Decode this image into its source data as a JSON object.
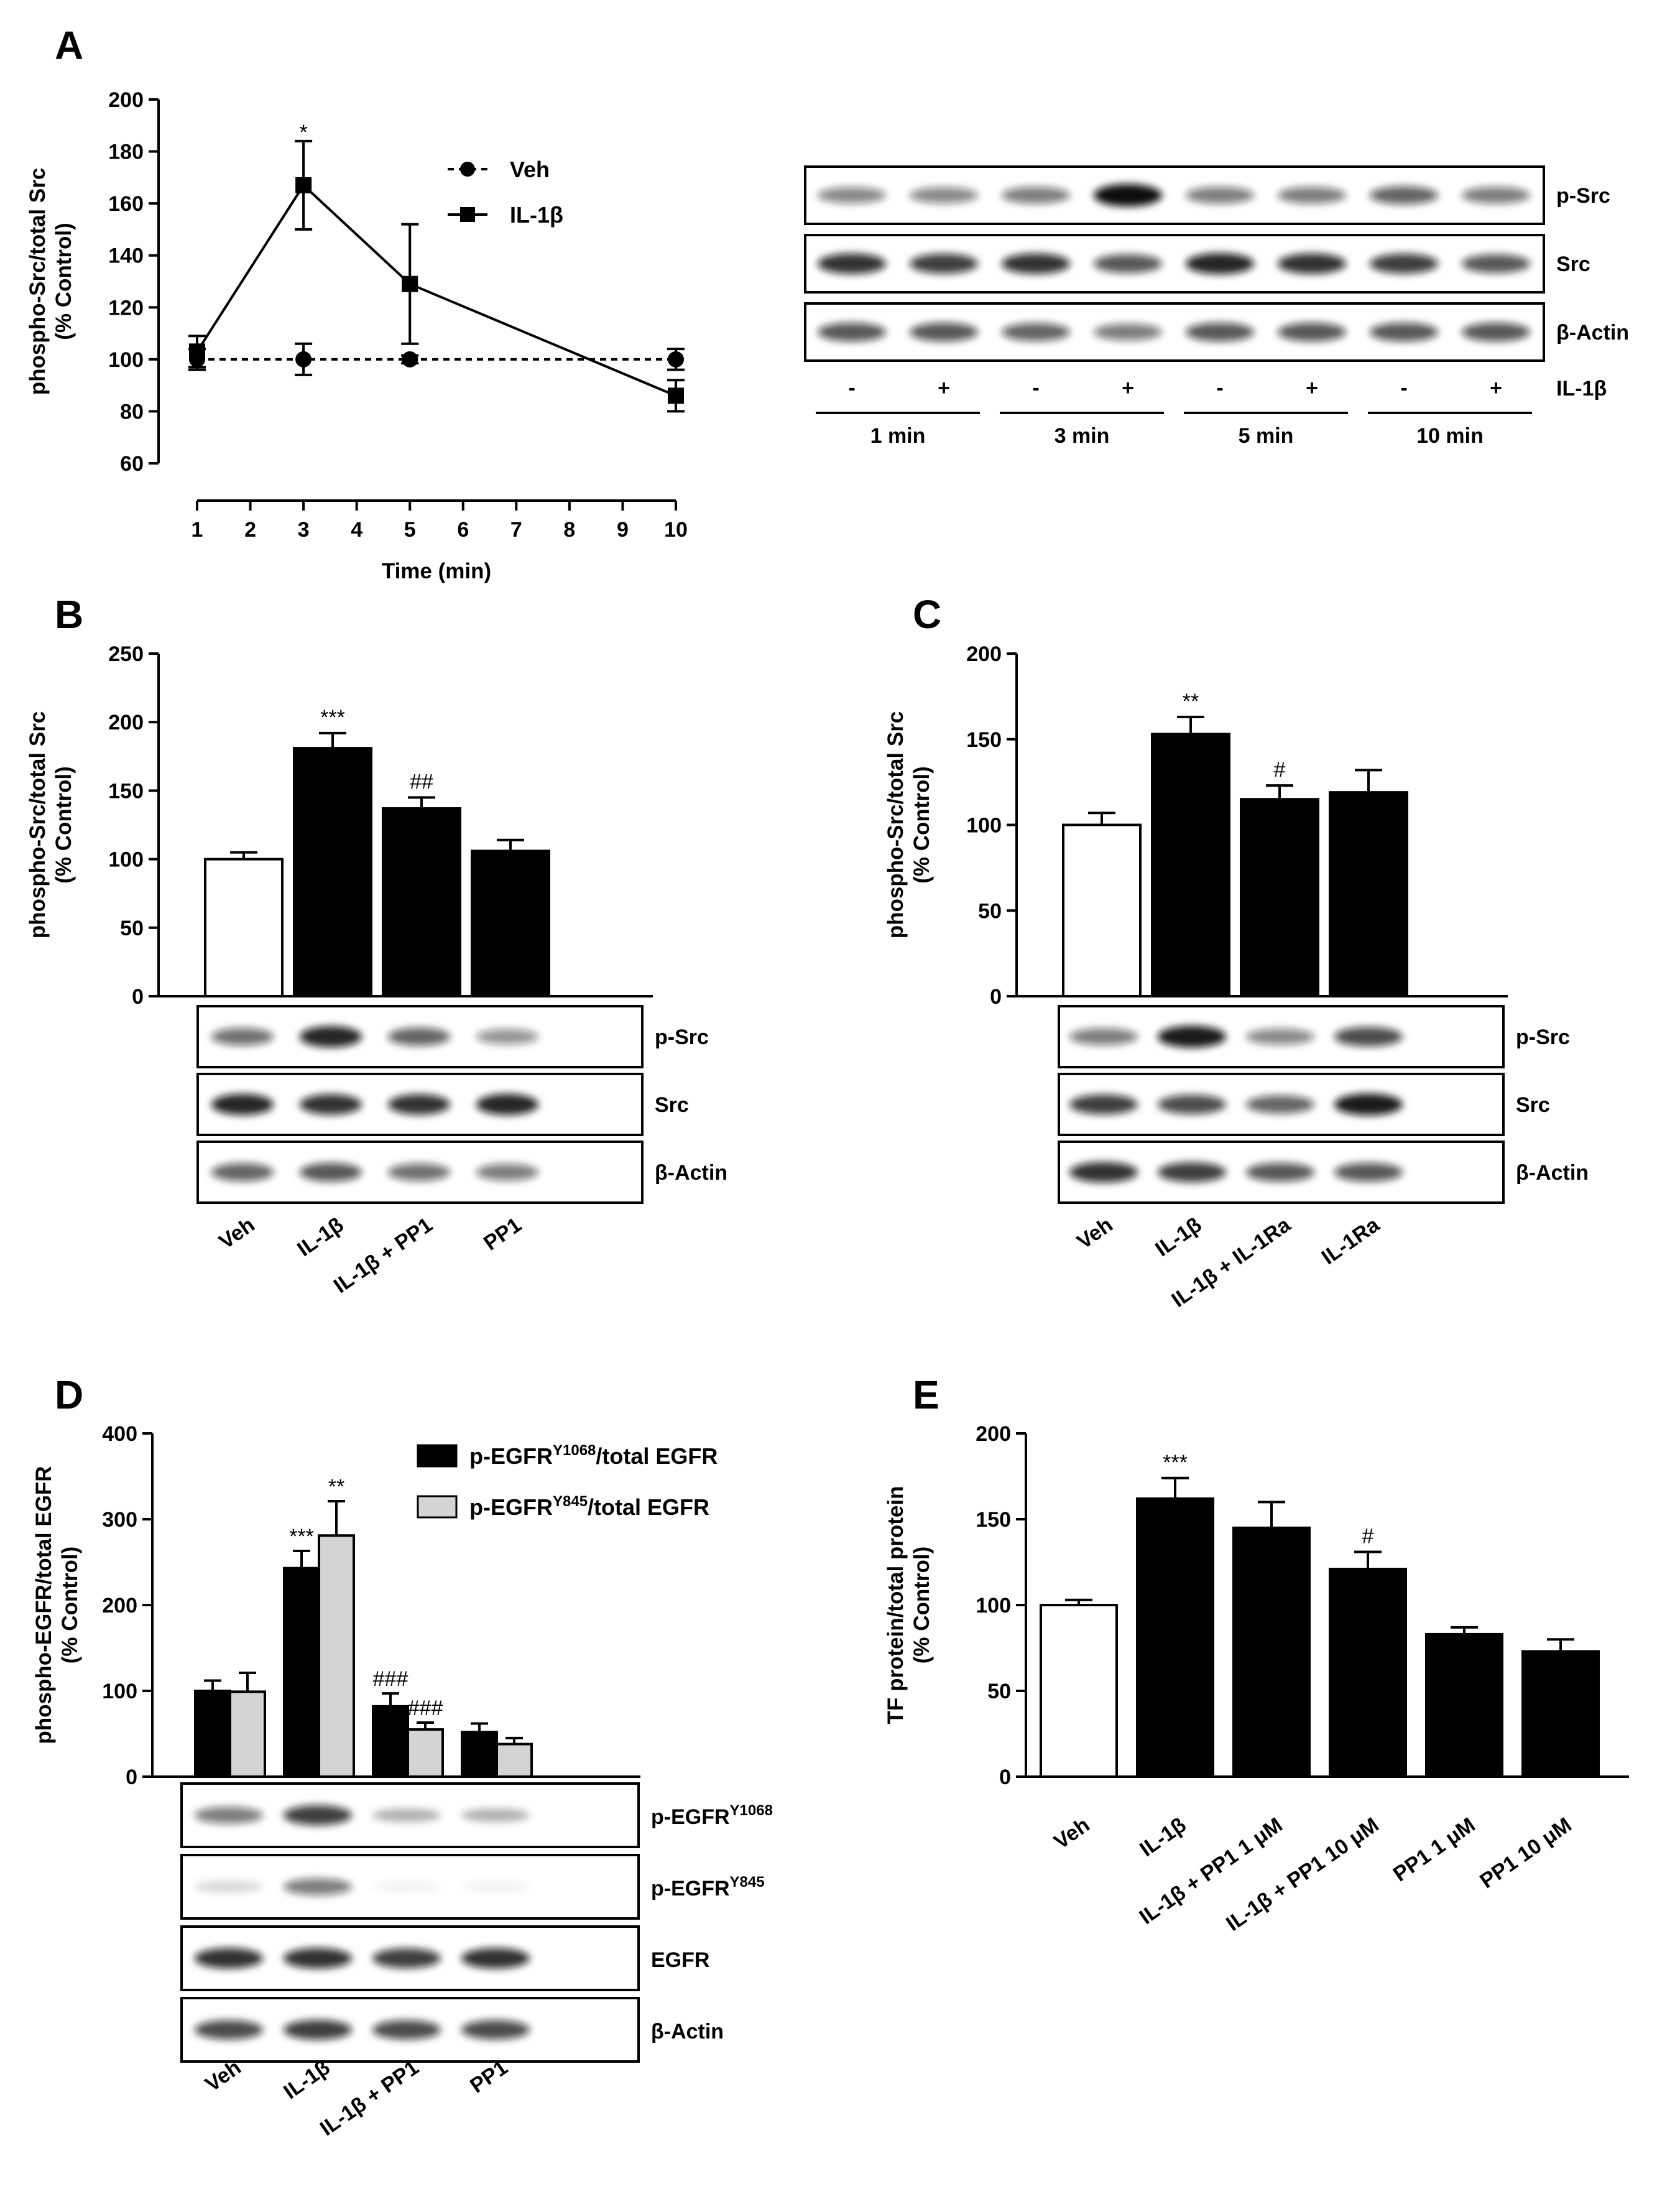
{
  "chart_data": [
    {
      "id": "A",
      "panel_label": "A",
      "type": "line",
      "ylabel_line1": "phospho-Src/total Src",
      "ylabel_line2": "(% Control)",
      "xlabel": "Time (min)",
      "ylim": [
        60,
        200
      ],
      "yticks": [
        60,
        80,
        100,
        120,
        140,
        160,
        180,
        200
      ],
      "xlim": [
        1,
        10
      ],
      "xticks": [
        1,
        2,
        3,
        4,
        5,
        6,
        7,
        8,
        9,
        10
      ],
      "legend_position": "top-right",
      "series": [
        {
          "name": "Veh",
          "marker": "circle",
          "linestyle": "dashed",
          "x": [
            1,
            3,
            5,
            10
          ],
          "y": [
            100,
            100,
            100,
            100
          ],
          "err": [
            4,
            6,
            1.5,
            4
          ]
        },
        {
          "name": "IL-1β",
          "marker": "square",
          "linestyle": "solid",
          "x": [
            1,
            3,
            5,
            10
          ],
          "y": [
            103,
            167,
            129,
            86
          ],
          "err": [
            6,
            17,
            23,
            6
          ]
        }
      ],
      "annotations": [
        {
          "x": 3,
          "y": 190,
          "text": "*"
        }
      ],
      "blot": {
        "lanes": 8,
        "rows": [
          "p-Src",
          "Src",
          "β-Actin"
        ],
        "intensity": [
          [
            0.5,
            0.5,
            0.55,
            1.0,
            0.55,
            0.55,
            0.65,
            0.55
          ],
          [
            0.85,
            0.8,
            0.85,
            0.7,
            0.9,
            0.85,
            0.8,
            0.7
          ],
          [
            0.7,
            0.7,
            0.65,
            0.55,
            0.7,
            0.7,
            0.7,
            0.7
          ]
        ],
        "treatment_label": "IL-1β",
        "signs": [
          "-",
          "+",
          "-",
          "+",
          "-",
          "+",
          "-",
          "+"
        ],
        "groups": [
          "1 min",
          "3 min",
          "5 min",
          "10 min"
        ]
      }
    },
    {
      "id": "B",
      "panel_label": "B",
      "type": "bar",
      "ylabel_line1": "phospho-Src/total Src",
      "ylabel_line2": "(% Control)",
      "ylim": [
        0,
        250
      ],
      "yticks": [
        0,
        50,
        100,
        150,
        200,
        250
      ],
      "categories": [
        "Veh",
        "IL-1β",
        "IL-1β + PP1",
        "PP1"
      ],
      "values": [
        100,
        181,
        137,
        106
      ],
      "errors": [
        5,
        11,
        8,
        8
      ],
      "fills": [
        "#ffffff",
        "#000000",
        "#000000",
        "#000000"
      ],
      "sig": [
        "",
        "***",
        "##",
        ""
      ],
      "blot": {
        "rows": [
          "p-Src",
          "Src",
          "β-Actin"
        ],
        "intensity": [
          [
            0.6,
            0.9,
            0.65,
            0.45
          ],
          [
            0.9,
            0.85,
            0.85,
            0.9
          ],
          [
            0.65,
            0.7,
            0.6,
            0.55
          ]
        ]
      }
    },
    {
      "id": "C",
      "panel_label": "C",
      "type": "bar",
      "ylabel_line1": "phospho-Src/total Src",
      "ylabel_line2": "(% Control)",
      "ylim": [
        0,
        200
      ],
      "yticks": [
        0,
        50,
        100,
        150,
        200
      ],
      "categories": [
        "Veh",
        "IL-1β",
        "IL-1β + IL-1Ra",
        "IL-1Ra"
      ],
      "values": [
        100,
        153,
        115,
        119
      ],
      "errors": [
        7,
        10,
        8,
        13
      ],
      "fills": [
        "#ffffff",
        "#000000",
        "#000000",
        "#000000"
      ],
      "sig": [
        "",
        "**",
        "#",
        ""
      ],
      "blot": {
        "rows": [
          "p-Src",
          "Src",
          "β-Actin"
        ],
        "intensity": [
          [
            0.55,
            0.95,
            0.5,
            0.75
          ],
          [
            0.8,
            0.75,
            0.65,
            0.95
          ],
          [
            0.85,
            0.8,
            0.7,
            0.7
          ]
        ]
      }
    },
    {
      "id": "D",
      "panel_label": "D",
      "type": "bar",
      "ylabel_line1": "phospho-EGFR/total EGFR",
      "ylabel_line2": "(% Control)",
      "ylim": [
        0,
        400
      ],
      "yticks": [
        0,
        100,
        200,
        300,
        400
      ],
      "categories": [
        "Veh",
        "IL-1β",
        "IL-1β + PP1",
        "PP1"
      ],
      "legend_position": "top-right",
      "series": [
        {
          "name_main": "p-EGFR",
          "name_sup": "Y1068",
          "name_tail": "/total EGFR",
          "fill": "#000000",
          "values": [
            100,
            243,
            82,
            52
          ],
          "errors": [
            12,
            20,
            15,
            10
          ],
          "sig": [
            "",
            "***",
            "###",
            ""
          ]
        },
        {
          "name_main": "p-EGFR",
          "name_sup": "Y845",
          "name_tail": "/total EGFR",
          "fill": "#d4d4d4",
          "values": [
            99,
            281,
            55,
            38
          ],
          "errors": [
            22,
            40,
            8,
            7
          ],
          "sig": [
            "",
            "**",
            "###",
            ""
          ]
        }
      ],
      "blot": {
        "rows": [
          {
            "main": "p-EGFR",
            "sup": "Y1068"
          },
          {
            "main": "p-EGFR",
            "sup": "Y845"
          },
          {
            "main": "EGFR",
            "sup": ""
          },
          {
            "main": "β-Actin",
            "sup": ""
          }
        ],
        "intensity": [
          [
            0.55,
            0.8,
            0.3,
            0.3
          ],
          [
            0.15,
            0.55,
            0.05,
            0.05
          ],
          [
            0.85,
            0.85,
            0.8,
            0.85
          ],
          [
            0.75,
            0.8,
            0.75,
            0.75
          ]
        ]
      }
    },
    {
      "id": "E",
      "panel_label": "E",
      "type": "bar",
      "ylabel_line1": "TF protein/total protein",
      "ylabel_line2": "(% Control)",
      "ylim": [
        0,
        200
      ],
      "yticks": [
        0,
        50,
        100,
        150,
        200
      ],
      "categories": [
        "Veh",
        "IL-1β",
        "IL-1β + PP1 1 μM",
        "IL-1β + PP1 10 μM",
        "PP1 1 μM",
        "PP1 10 μM"
      ],
      "values": [
        100,
        162,
        145,
        121,
        83,
        73
      ],
      "errors": [
        3,
        12,
        15,
        10,
        4,
        7
      ],
      "fills": [
        "#ffffff",
        "#000000",
        "#000000",
        "#000000",
        "#000000",
        "#000000"
      ],
      "sig": [
        "",
        "***",
        "",
        "#",
        "",
        ""
      ]
    }
  ]
}
